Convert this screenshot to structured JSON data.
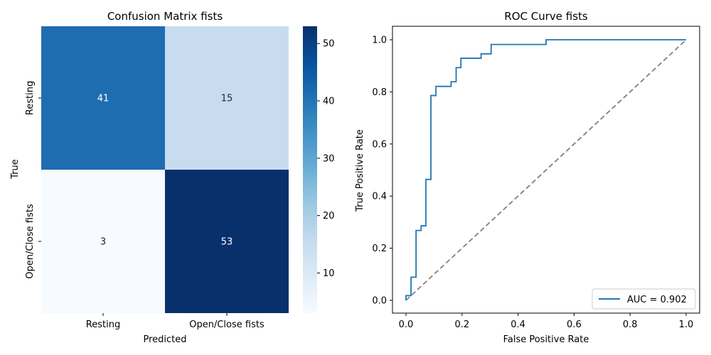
{
  "chart_data": [
    {
      "type": "heatmap",
      "title": "Confusion Matrix fists",
      "xlabel": "Predicted",
      "ylabel": "True",
      "x_categories": [
        "Resting",
        "Open/Close fists"
      ],
      "y_categories": [
        "Resting",
        "Open/Close fists"
      ],
      "values": [
        [
          41,
          15
        ],
        [
          3,
          53
        ]
      ],
      "colormap": "Blues",
      "colorbar": {
        "ticks": [
          10,
          20,
          30,
          40,
          50
        ],
        "range": [
          3,
          53
        ]
      },
      "cell_colors": {
        "41": "#1f6db1",
        "15": "#c8dcf0",
        "3": "#f7fbff",
        "53": "#08306b"
      },
      "text_colors": {
        "dark_cells": "#ffffff",
        "light_cells": "#262626"
      }
    },
    {
      "type": "line",
      "title": "ROC Curve fists",
      "xlabel": "False Positive Rate",
      "ylabel": "True Positive Rate",
      "xlim": [
        0,
        1
      ],
      "ylim": [
        0,
        1
      ],
      "xticks": [
        "0.0",
        "0.2",
        "0.4",
        "0.6",
        "0.8",
        "1.0"
      ],
      "yticks": [
        "0.0",
        "0.2",
        "0.4",
        "0.6",
        "0.8",
        "1.0"
      ],
      "legend": {
        "placement": "lower-right",
        "entries": [
          "AUC = 0.902"
        ]
      },
      "series": [
        {
          "name": "AUC = 0.902",
          "color": "#1f77b4",
          "style": "solid",
          "x": [
            0.0,
            0.0,
            0.018,
            0.018,
            0.036,
            0.036,
            0.054,
            0.054,
            0.071,
            0.071,
            0.089,
            0.089,
            0.107,
            0.107,
            0.161,
            0.161,
            0.179,
            0.179,
            0.196,
            0.196,
            0.268,
            0.268,
            0.304,
            0.304,
            0.5,
            0.5,
            1.0
          ],
          "y": [
            0.0,
            0.018,
            0.018,
            0.089,
            0.089,
            0.268,
            0.268,
            0.286,
            0.286,
            0.464,
            0.464,
            0.786,
            0.786,
            0.821,
            0.821,
            0.839,
            0.839,
            0.893,
            0.893,
            0.929,
            0.929,
            0.946,
            0.946,
            0.982,
            0.982,
            1.0,
            1.0
          ]
        },
        {
          "color": "#808080",
          "style": "dashed",
          "x": [
            0,
            1
          ],
          "y": [
            0,
            1
          ]
        }
      ]
    }
  ]
}
